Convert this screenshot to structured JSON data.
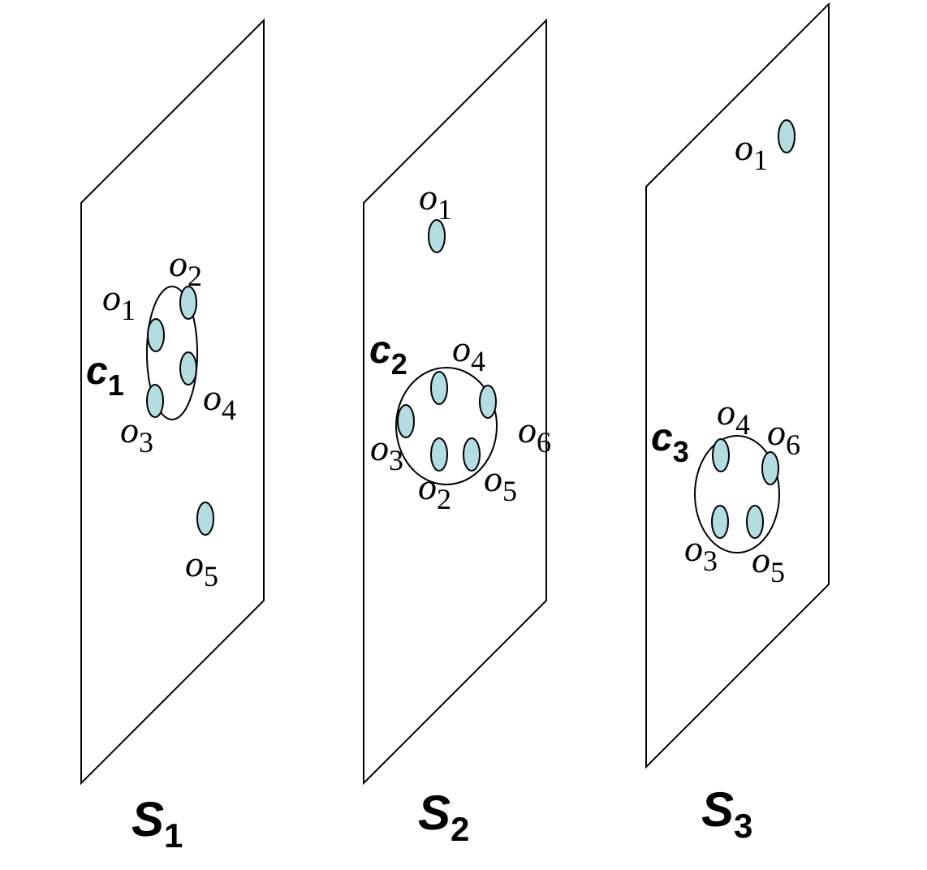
{
  "colors": {
    "object_fill": "#b3dde0",
    "stroke": "#000000",
    "background": "#ffffff"
  },
  "snapshots": [
    {
      "label": "S",
      "sub": "1",
      "cluster": {
        "label": "c",
        "sub": "1"
      },
      "objects": [
        {
          "label": "o",
          "sub": "1"
        },
        {
          "label": "o",
          "sub": "2"
        },
        {
          "label": "o",
          "sub": "3"
        },
        {
          "label": "o",
          "sub": "4"
        },
        {
          "label": "o",
          "sub": "5"
        }
      ]
    },
    {
      "label": "S",
      "sub": "2",
      "cluster": {
        "label": "c",
        "sub": "2"
      },
      "objects": [
        {
          "label": "o",
          "sub": "1"
        },
        {
          "label": "o",
          "sub": "2"
        },
        {
          "label": "o",
          "sub": "3"
        },
        {
          "label": "o",
          "sub": "4"
        },
        {
          "label": "o",
          "sub": "5"
        },
        {
          "label": "o",
          "sub": "6"
        }
      ]
    },
    {
      "label": "S",
      "sub": "3",
      "cluster": {
        "label": "c",
        "sub": "3"
      },
      "objects": [
        {
          "label": "o",
          "sub": "1"
        },
        {
          "label": "o",
          "sub": "3"
        },
        {
          "label": "o",
          "sub": "4"
        },
        {
          "label": "o",
          "sub": "5"
        },
        {
          "label": "o",
          "sub": "6"
        }
      ]
    }
  ]
}
